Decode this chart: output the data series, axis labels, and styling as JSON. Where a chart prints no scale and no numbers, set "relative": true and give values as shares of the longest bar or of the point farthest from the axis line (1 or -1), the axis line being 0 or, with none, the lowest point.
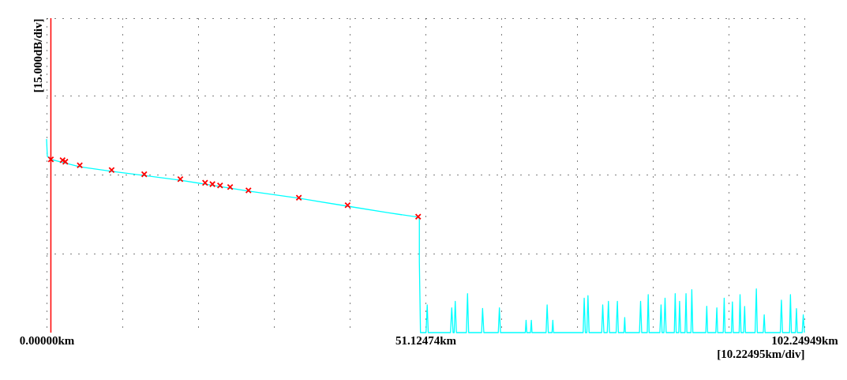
{
  "chart_data": {
    "type": "line",
    "relative": true,
    "xlabel": "[10.22495km/div]",
    "ylabel": "[15.000dB/div]",
    "xlim": [
      0,
      102.24949
    ],
    "xticks": [
      {
        "value": 0,
        "label": "0.00000km"
      },
      {
        "value": 10.22495,
        "label": null
      },
      {
        "value": 20.4499,
        "label": null
      },
      {
        "value": 30.67485,
        "label": null
      },
      {
        "value": 40.8998,
        "label": null
      },
      {
        "value": 51.12474,
        "label": "51.12474km"
      },
      {
        "value": 61.3497,
        "label": null
      },
      {
        "value": 71.57465,
        "label": null
      },
      {
        "value": 81.7996,
        "label": null
      },
      {
        "value": 92.02455,
        "label": null
      },
      {
        "value": 102.24949,
        "label": "102.24949km"
      }
    ],
    "grid": true,
    "ref_lines": [
      {
        "axis": "x",
        "value": 0.58,
        "color": "#ff0000"
      }
    ],
    "series": [
      {
        "type": "line",
        "color": "#00ffff",
        "x": [
          0,
          0.1,
          0.62,
          4.48,
          8.78,
          13.18,
          18.05,
          23.41,
          27.24,
          34.04,
          40.62,
          46,
          50.14,
          50.3,
          50.3,
          50.45,
          51.2,
          51.36,
          51.5,
          54.5,
          54.67,
          54.85,
          55,
          55.14,
          55.3,
          56.65,
          56.8,
          56.95,
          58.7,
          58.83,
          59,
          60.95,
          61.1,
          61.25,
          64.6,
          64.7,
          64.8,
          65.3,
          65.41,
          65.5,
          67.4,
          67.54,
          67.7,
          68.2,
          68.31,
          68.4,
          72.4,
          72.54,
          72.7,
          72.9,
          73.05,
          73.2,
          74.9,
          75.04,
          75.2,
          75.65,
          75.81,
          75.95,
          76.85,
          77.02,
          77.15,
          77.9,
          78.01,
          78.1,
          80,
          80.15,
          80.3,
          81.05,
          81.18,
          81.3,
          82.75,
          82.91,
          83.05,
          83.3,
          83.45,
          83.6,
          84.7,
          84.82,
          84.95,
          85.3,
          85.41,
          85.55,
          86.15,
          86.28,
          86.4,
          86.95,
          87.06,
          87.2,
          88.95,
          89.08,
          89.2,
          90.3,
          90.44,
          90.55,
          91.3,
          91.43,
          91.55,
          92.4,
          92.54,
          92.65,
          93.45,
          93.57,
          93.7,
          94.05,
          94.19,
          94.3,
          95.6,
          95.77,
          95.9,
          96.7,
          96.83,
          96.95,
          99,
          99.15,
          99.3,
          100.25,
          100.37,
          100.5,
          101.05,
          101.18,
          101.3,
          101.95,
          102.1,
          102.24949
        ],
        "values": [
          1.0,
          0.91,
          0.894,
          0.857,
          0.833,
          0.812,
          0.787,
          0.755,
          0.731,
          0.694,
          0.653,
          0.62,
          0.596,
          0.59,
          0.367,
          0,
          0,
          0.143,
          0,
          0,
          0.128,
          0,
          0,
          0.162,
          0,
          0,
          0.201,
          0,
          0,
          0.125,
          0,
          0,
          0.128,
          0,
          0,
          0.064,
          0,
          0,
          0.064,
          0,
          0,
          0.143,
          0,
          0,
          0.064,
          0,
          0,
          0.178,
          0,
          0,
          0.191,
          0,
          0,
          0.143,
          0,
          0,
          0.162,
          0,
          0,
          0.162,
          0,
          0,
          0.078,
          0,
          0,
          0.162,
          0,
          0,
          0.196,
          0,
          0,
          0.143,
          0,
          0,
          0.178,
          0,
          0,
          0.201,
          0,
          0,
          0.162,
          0,
          0,
          0.201,
          0,
          0,
          0.222,
          0,
          0,
          0.136,
          0,
          0,
          0.128,
          0,
          0,
          0.178,
          0,
          0,
          0.159,
          0,
          0,
          0.196,
          0,
          0,
          0.135,
          0,
          0,
          0.226,
          0,
          0,
          0.092,
          0,
          0,
          0.168,
          0,
          0,
          0.196,
          0,
          0,
          0.124,
          0,
          0,
          0.092,
          0
        ]
      },
      {
        "type": "scatter",
        "marker": "cross",
        "color": "#ff0000",
        "x": [
          0.58,
          2.16,
          2.53,
          4.48,
          8.78,
          13.18,
          18.05,
          21.39,
          22.38,
          23.41,
          24.77,
          27.24,
          34.04,
          40.62,
          50.14
        ],
        "values": [
          0.895,
          0.891,
          0.883,
          0.864,
          0.84,
          0.818,
          0.793,
          0.774,
          0.767,
          0.76,
          0.752,
          0.735,
          0.697,
          0.658,
          0.599
        ]
      }
    ]
  }
}
